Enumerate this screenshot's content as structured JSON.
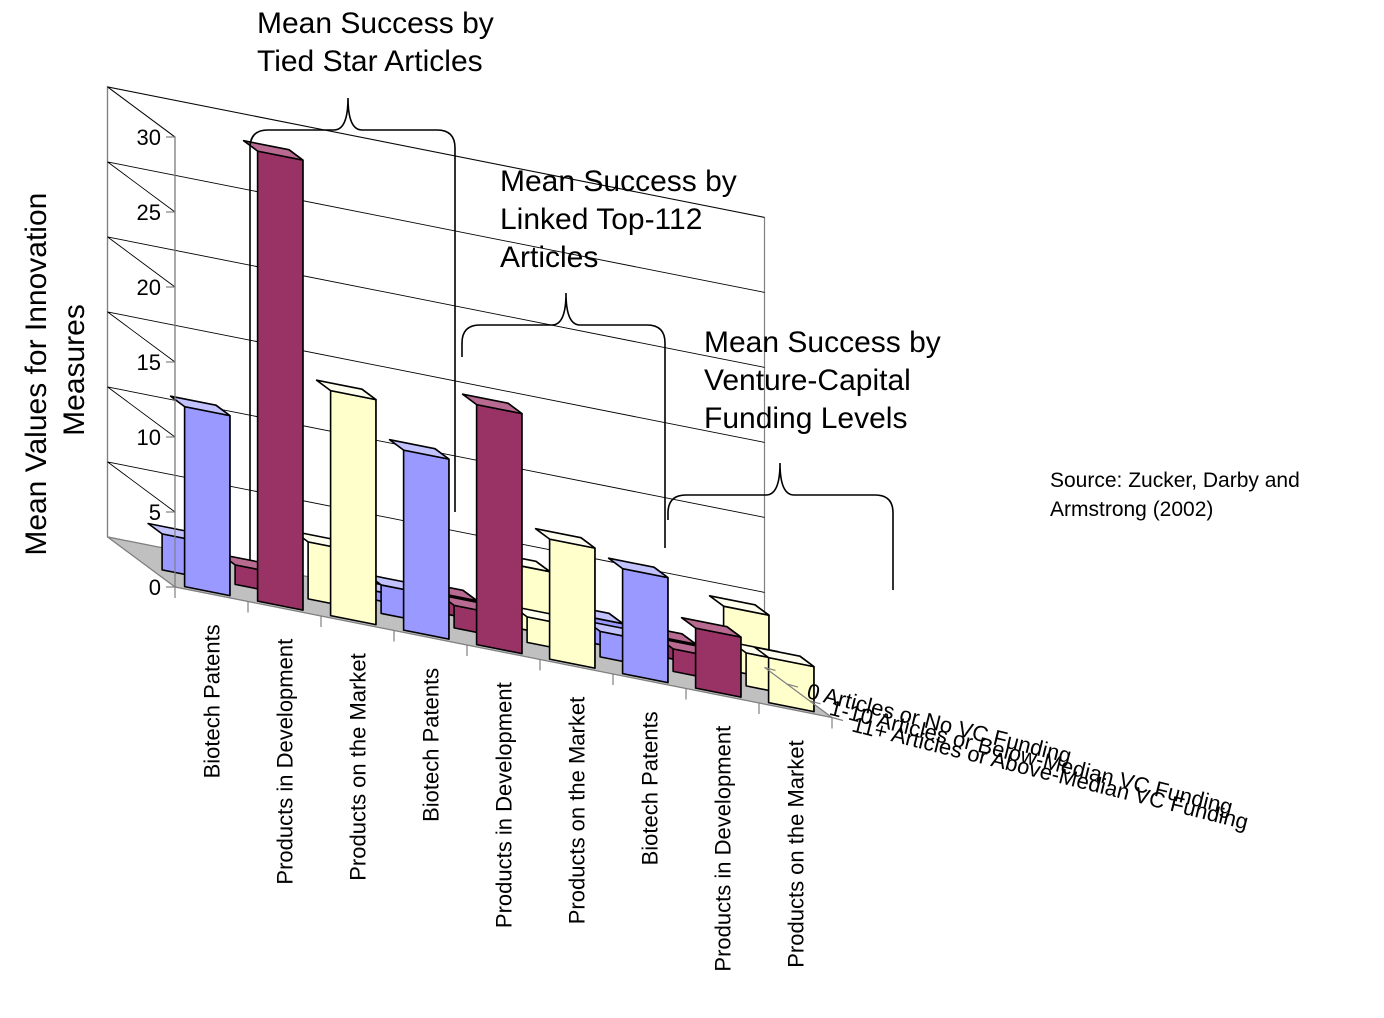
{
  "chart_data": {
    "type": "bar",
    "title": "",
    "ylabel": "Mean Values for Innovation Measures",
    "ylim": [
      0,
      30
    ],
    "yticks": [
      0,
      5,
      10,
      15,
      20,
      25,
      30
    ],
    "categories": [
      "Biotech Patents",
      "Products in Development",
      "Products on the Market",
      "Biotech Patents",
      "Products in Development",
      "Products on the Market",
      "Biotech Patents",
      "Products in Development",
      "Products on the Market"
    ],
    "series": [
      {
        "name": "11+ Articles or Above-Median VC Funding",
        "values": [
          12,
          30,
          15,
          12,
          16,
          8,
          7,
          4,
          3
        ]
      },
      {
        "name": "1-10 Articles or Below-Median VC Funding",
        "values": [
          2.4,
          1.3,
          3.8,
          1.9,
          1.5,
          1.7,
          1.7,
          1.5,
          2.2
        ]
      },
      {
        "name": "0 Articles or No VC Funding",
        "values": [
          0,
          0,
          0,
          0.6,
          1.3,
          4.2,
          1.7,
          1.3,
          4.2
        ]
      }
    ],
    "grid": true,
    "annotations": [
      {
        "lines": [
          "Mean Success by",
          "Tied Star Articles"
        ]
      },
      {
        "lines": [
          "Mean Success by",
          "Linked Top-112",
          "Articles"
        ]
      },
      {
        "lines": [
          "Mean Success by",
          "Venture-Capital",
          "Funding Levels"
        ]
      }
    ],
    "source": [
      "Source: Zucker, Darby and",
      "Armstrong (2002)"
    ]
  },
  "colors": {
    "biotech": {
      "front": "#9999ff",
      "side": "#5a5aa8",
      "top": "#c2c2ff"
    },
    "development": {
      "front": "#993366",
      "side": "#5e1f3e",
      "top": "#b86a90"
    },
    "market": {
      "front": "#ffffcc",
      "side": "#b5b58a",
      "top": "#fffff0"
    },
    "floor": "#c0c0c0",
    "axis": "#808080"
  }
}
